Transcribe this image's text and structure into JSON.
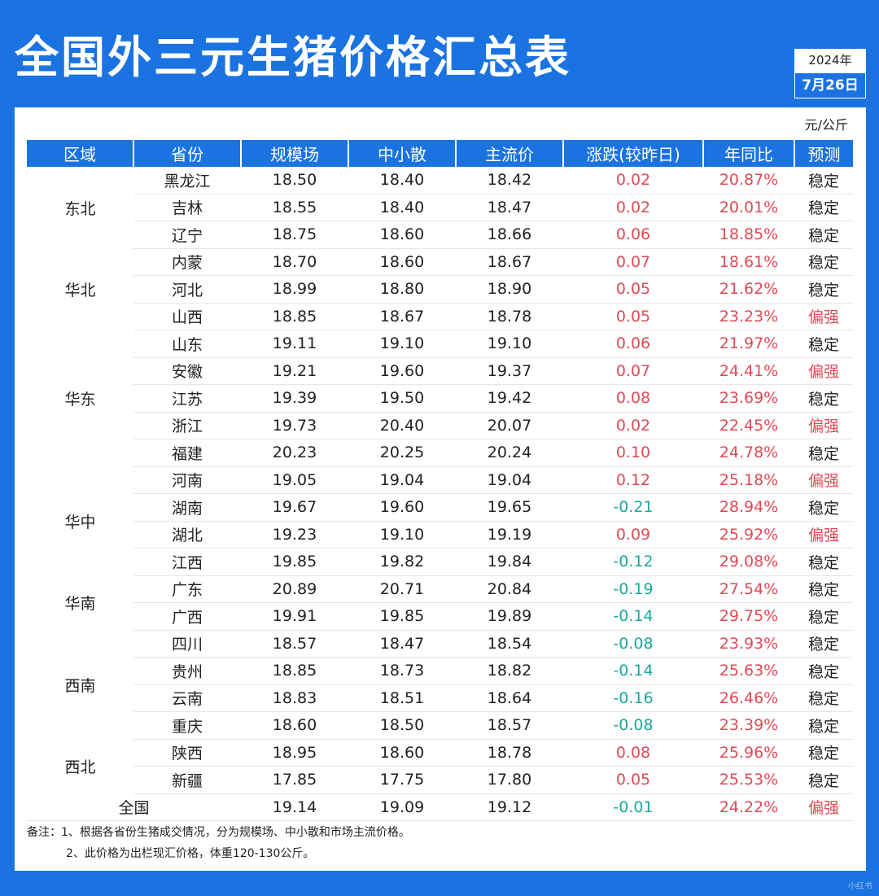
{
  "title": "全国外三元生猪价格汇总表",
  "date": {
    "year": "2024年",
    "day": "7月26日"
  },
  "unit": "元/公斤",
  "headers": [
    "区域",
    "省份",
    "规模场",
    "中小散",
    "主流价",
    "涨跌(较昨日)",
    "年同比",
    "预测"
  ],
  "regions": [
    {
      "name": "东北",
      "rows": [
        {
          "province": "黑龙江",
          "large": "18.50",
          "small": "18.40",
          "main": "18.42",
          "change": "0.02",
          "yoy": "20.87%",
          "forecast": "稳定"
        },
        {
          "province": "吉林",
          "large": "18.55",
          "small": "18.40",
          "main": "18.47",
          "change": "0.02",
          "yoy": "20.01%",
          "forecast": "稳定"
        },
        {
          "province": "辽宁",
          "large": "18.75",
          "small": "18.60",
          "main": "18.66",
          "change": "0.06",
          "yoy": "18.85%",
          "forecast": "稳定"
        }
      ]
    },
    {
      "name": "华北",
      "rows": [
        {
          "province": "内蒙",
          "large": "18.70",
          "small": "18.60",
          "main": "18.67",
          "change": "0.07",
          "yoy": "18.61%",
          "forecast": "稳定"
        },
        {
          "province": "河北",
          "large": "18.99",
          "small": "18.80",
          "main": "18.90",
          "change": "0.05",
          "yoy": "21.62%",
          "forecast": "稳定"
        },
        {
          "province": "山西",
          "large": "18.85",
          "small": "18.67",
          "main": "18.78",
          "change": "0.05",
          "yoy": "23.23%",
          "forecast": "偏强"
        }
      ]
    },
    {
      "name": "华东",
      "rows": [
        {
          "province": "山东",
          "large": "19.11",
          "small": "19.10",
          "main": "19.10",
          "change": "0.06",
          "yoy": "21.97%",
          "forecast": "稳定"
        },
        {
          "province": "安徽",
          "large": "19.21",
          "small": "19.60",
          "main": "19.37",
          "change": "0.07",
          "yoy": "24.41%",
          "forecast": "偏强"
        },
        {
          "province": "江苏",
          "large": "19.39",
          "small": "19.50",
          "main": "19.42",
          "change": "0.08",
          "yoy": "23.69%",
          "forecast": "稳定"
        },
        {
          "province": "浙江",
          "large": "19.73",
          "small": "20.40",
          "main": "20.07",
          "change": "0.02",
          "yoy": "22.45%",
          "forecast": "偏强"
        },
        {
          "province": "福建",
          "large": "20.23",
          "small": "20.25",
          "main": "20.24",
          "change": "0.10",
          "yoy": "24.78%",
          "forecast": "稳定"
        }
      ]
    },
    {
      "name": "华中",
      "rows": [
        {
          "province": "河南",
          "large": "19.05",
          "small": "19.04",
          "main": "19.04",
          "change": "0.12",
          "yoy": "25.18%",
          "forecast": "偏强"
        },
        {
          "province": "湖南",
          "large": "19.67",
          "small": "19.60",
          "main": "19.65",
          "change": "-0.21",
          "yoy": "28.94%",
          "forecast": "稳定"
        },
        {
          "province": "湖北",
          "large": "19.23",
          "small": "19.10",
          "main": "19.19",
          "change": "0.09",
          "yoy": "25.92%",
          "forecast": "偏强"
        },
        {
          "province": "江西",
          "large": "19.85",
          "small": "19.82",
          "main": "19.84",
          "change": "-0.12",
          "yoy": "29.08%",
          "forecast": "稳定"
        }
      ]
    },
    {
      "name": "华南",
      "rows": [
        {
          "province": "广东",
          "large": "20.89",
          "small": "20.71",
          "main": "20.84",
          "change": "-0.19",
          "yoy": "27.54%",
          "forecast": "稳定"
        },
        {
          "province": "广西",
          "large": "19.91",
          "small": "19.85",
          "main": "19.89",
          "change": "-0.14",
          "yoy": "29.75%",
          "forecast": "稳定"
        }
      ]
    },
    {
      "name": "西南",
      "rows": [
        {
          "province": "四川",
          "large": "18.57",
          "small": "18.47",
          "main": "18.54",
          "change": "-0.08",
          "yoy": "23.93%",
          "forecast": "稳定"
        },
        {
          "province": "贵州",
          "large": "18.85",
          "small": "18.73",
          "main": "18.82",
          "change": "-0.14",
          "yoy": "25.63%",
          "forecast": "稳定"
        },
        {
          "province": "云南",
          "large": "18.83",
          "small": "18.51",
          "main": "18.64",
          "change": "-0.16",
          "yoy": "26.46%",
          "forecast": "稳定"
        },
        {
          "province": "重庆",
          "large": "18.60",
          "small": "18.50",
          "main": "18.57",
          "change": "-0.08",
          "yoy": "23.39%",
          "forecast": "稳定"
        }
      ]
    },
    {
      "name": "西北",
      "rows": [
        {
          "province": "陕西",
          "large": "18.95",
          "small": "18.60",
          "main": "18.78",
          "change": "0.08",
          "yoy": "25.96%",
          "forecast": "稳定"
        },
        {
          "province": "新疆",
          "large": "17.85",
          "small": "17.75",
          "main": "17.80",
          "change": "0.05",
          "yoy": "25.53%",
          "forecast": "稳定"
        }
      ]
    }
  ],
  "national": {
    "label": "全国",
    "large": "19.14",
    "small": "19.09",
    "main": "19.12",
    "change": "-0.01",
    "yoy": "24.22%",
    "forecast": "偏强"
  },
  "notes": [
    "备注：1、根据各省份生猪成交情况，分为规模场、中小散和市场主流价格。",
    "2、此价格为出栏现汇价格，体重120-130公斤。"
  ],
  "watermark": "小红书",
  "colors": {
    "brand": "#1a73e0",
    "up": "#e04a55",
    "down": "#1aa89a"
  }
}
